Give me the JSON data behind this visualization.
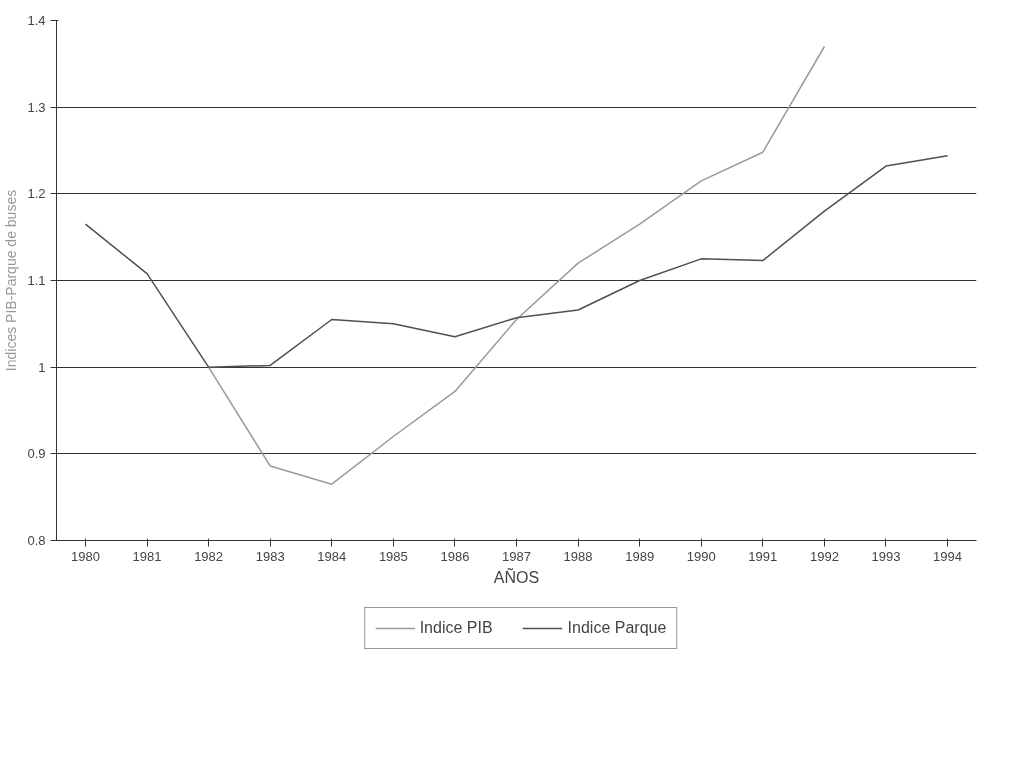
{
  "chart_data": {
    "type": "line",
    "xlabel": "AÑOS",
    "ylabel": "Indices PIB-Parque de buses",
    "categories": [
      "1980",
      "1981",
      "1982",
      "1983",
      "1984",
      "1985",
      "1986",
      "1987",
      "1988",
      "1989",
      "1990",
      "1991",
      "1992",
      "1993",
      "1994"
    ],
    "series": [
      {
        "name": "Indice PIB",
        "color": "#9a9a9a",
        "values": [
          null,
          null,
          1.0,
          0.886,
          0.865,
          0.92,
          0.972,
          1.055,
          1.12,
          1.165,
          1.215,
          1.248,
          1.37,
          null,
          null
        ]
      },
      {
        "name": "Indice Parque",
        "color": "#505050",
        "values": [
          1.165,
          1.108,
          1.0,
          1.002,
          1.055,
          1.05,
          1.035,
          1.057,
          1.066,
          1.1,
          1.125,
          1.123,
          1.18,
          1.232,
          1.244
        ]
      }
    ],
    "ylim": [
      0.8,
      1.4
    ],
    "yticks": [
      0.8,
      0.9,
      {
        "value": 1.0,
        "label": "1"
      },
      1.1,
      1.2,
      1.3,
      1.4
    ],
    "grid": "y",
    "legend": "bottom",
    "marker": "none",
    "line_style": "solid"
  }
}
